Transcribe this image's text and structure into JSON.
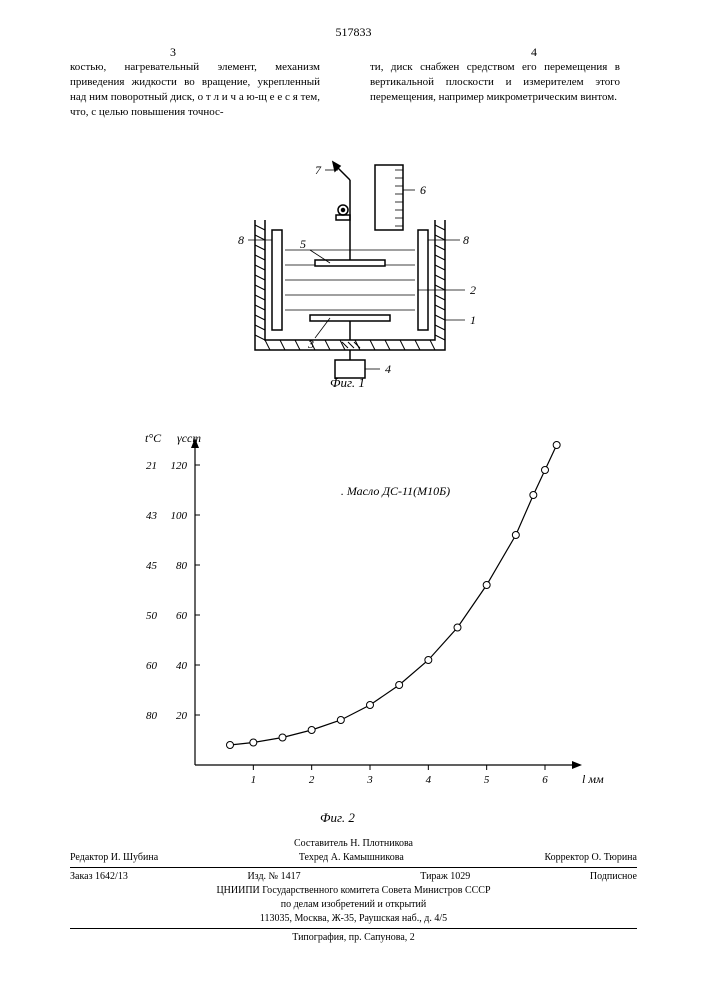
{
  "patent_number": "517833",
  "page_left": "3",
  "page_right": "4",
  "text_left": "костью, нагревательный элемент, механизм приведения жидкости во вращение, укрепленный над ним поворотный диск, о т л и ч а ю-щ е е с я тем, что, с целью повышения точнос-",
  "text_right": "ти, диск снабжен средством его перемещения в вертикальной плоскости и измерителем этого перемещения, например микрометрическим винтом.",
  "fig1_caption": "Фиг. 1",
  "fig2_caption": "Фиг. 2",
  "diagram": {
    "labels": [
      "1",
      "2",
      "3",
      "4",
      "5",
      "6",
      "7",
      "8",
      "8"
    ],
    "stroke": "#000000",
    "hatch_stroke": "#000000"
  },
  "chart": {
    "type": "line",
    "title": "Масло ДС-11(М10Б)",
    "title_fontsize": 12,
    "x_axis_label": "l мм",
    "y1_axis_label": "t°С",
    "y2_axis_label": "γсст",
    "x_ticks": [
      1,
      2,
      3,
      4,
      5,
      6
    ],
    "y2_ticks": [
      20,
      40,
      60,
      80,
      100,
      120
    ],
    "y1_labels": [
      "21",
      "43",
      "45",
      "50",
      "60",
      "80"
    ],
    "y1_label_y2_positions": [
      120,
      100,
      80,
      60,
      40,
      20
    ],
    "xlim": [
      0,
      6.6
    ],
    "ylim": [
      0,
      130
    ],
    "points": [
      {
        "x": 0.6,
        "y": 8
      },
      {
        "x": 1.0,
        "y": 9
      },
      {
        "x": 1.5,
        "y": 11
      },
      {
        "x": 2.0,
        "y": 14
      },
      {
        "x": 2.5,
        "y": 18
      },
      {
        "x": 3.0,
        "y": 24
      },
      {
        "x": 3.5,
        "y": 32
      },
      {
        "x": 4.0,
        "y": 42
      },
      {
        "x": 4.5,
        "y": 55
      },
      {
        "x": 5.0,
        "y": 72
      },
      {
        "x": 5.5,
        "y": 92
      },
      {
        "x": 5.8,
        "y": 108
      },
      {
        "x": 6.0,
        "y": 118
      },
      {
        "x": 6.2,
        "y": 128
      }
    ],
    "marker": "circle",
    "marker_size": 3.5,
    "line_color": "#000000",
    "marker_fill": "#ffffff",
    "marker_stroke": "#000000",
    "axis_color": "#000000",
    "tick_fontsize": 11,
    "label_fontsize": 12
  },
  "footer": {
    "compiler": "Составитель Н. Плотникова",
    "editor": "Редактор И. Шубина",
    "techred": "Техред А. Камышникова",
    "corrector": "Корректор О. Тюрина",
    "order": "Заказ 1642/13",
    "izd": "Изд. № 1417",
    "tirazh": "Тираж 1029",
    "subscribe": "Подписное",
    "org": "ЦНИИПИ Государственного комитета Совета Министров СССР",
    "org2": "по делам изобретений и открытий",
    "address": "113035, Москва, Ж-35, Раушская наб., д. 4/5",
    "printer": "Типография, пр. Сапунова, 2"
  }
}
